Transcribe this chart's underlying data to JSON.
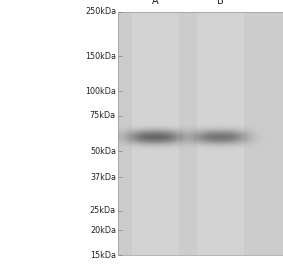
{
  "background_color": "#cccccc",
  "lane_bg_color": "#c8c8c8",
  "outer_background": "#ffffff",
  "lane_labels": [
    "A",
    "B"
  ],
  "marker_labels": [
    "250kDa",
    "150kDa",
    "100kDa",
    "75kDa",
    "50kDa",
    "37kDa",
    "25kDa",
    "20kDa",
    "15kDa"
  ],
  "marker_kda": [
    250,
    150,
    100,
    75,
    50,
    37,
    25,
    20,
    15
  ],
  "band_kda": 59,
  "band_intensity_A": 0.55,
  "band_intensity_B": 0.48,
  "label_fontsize": 5.8,
  "lane_label_fontsize": 7.0,
  "fig_width": 2.83,
  "fig_height": 2.64,
  "dpi": 100
}
